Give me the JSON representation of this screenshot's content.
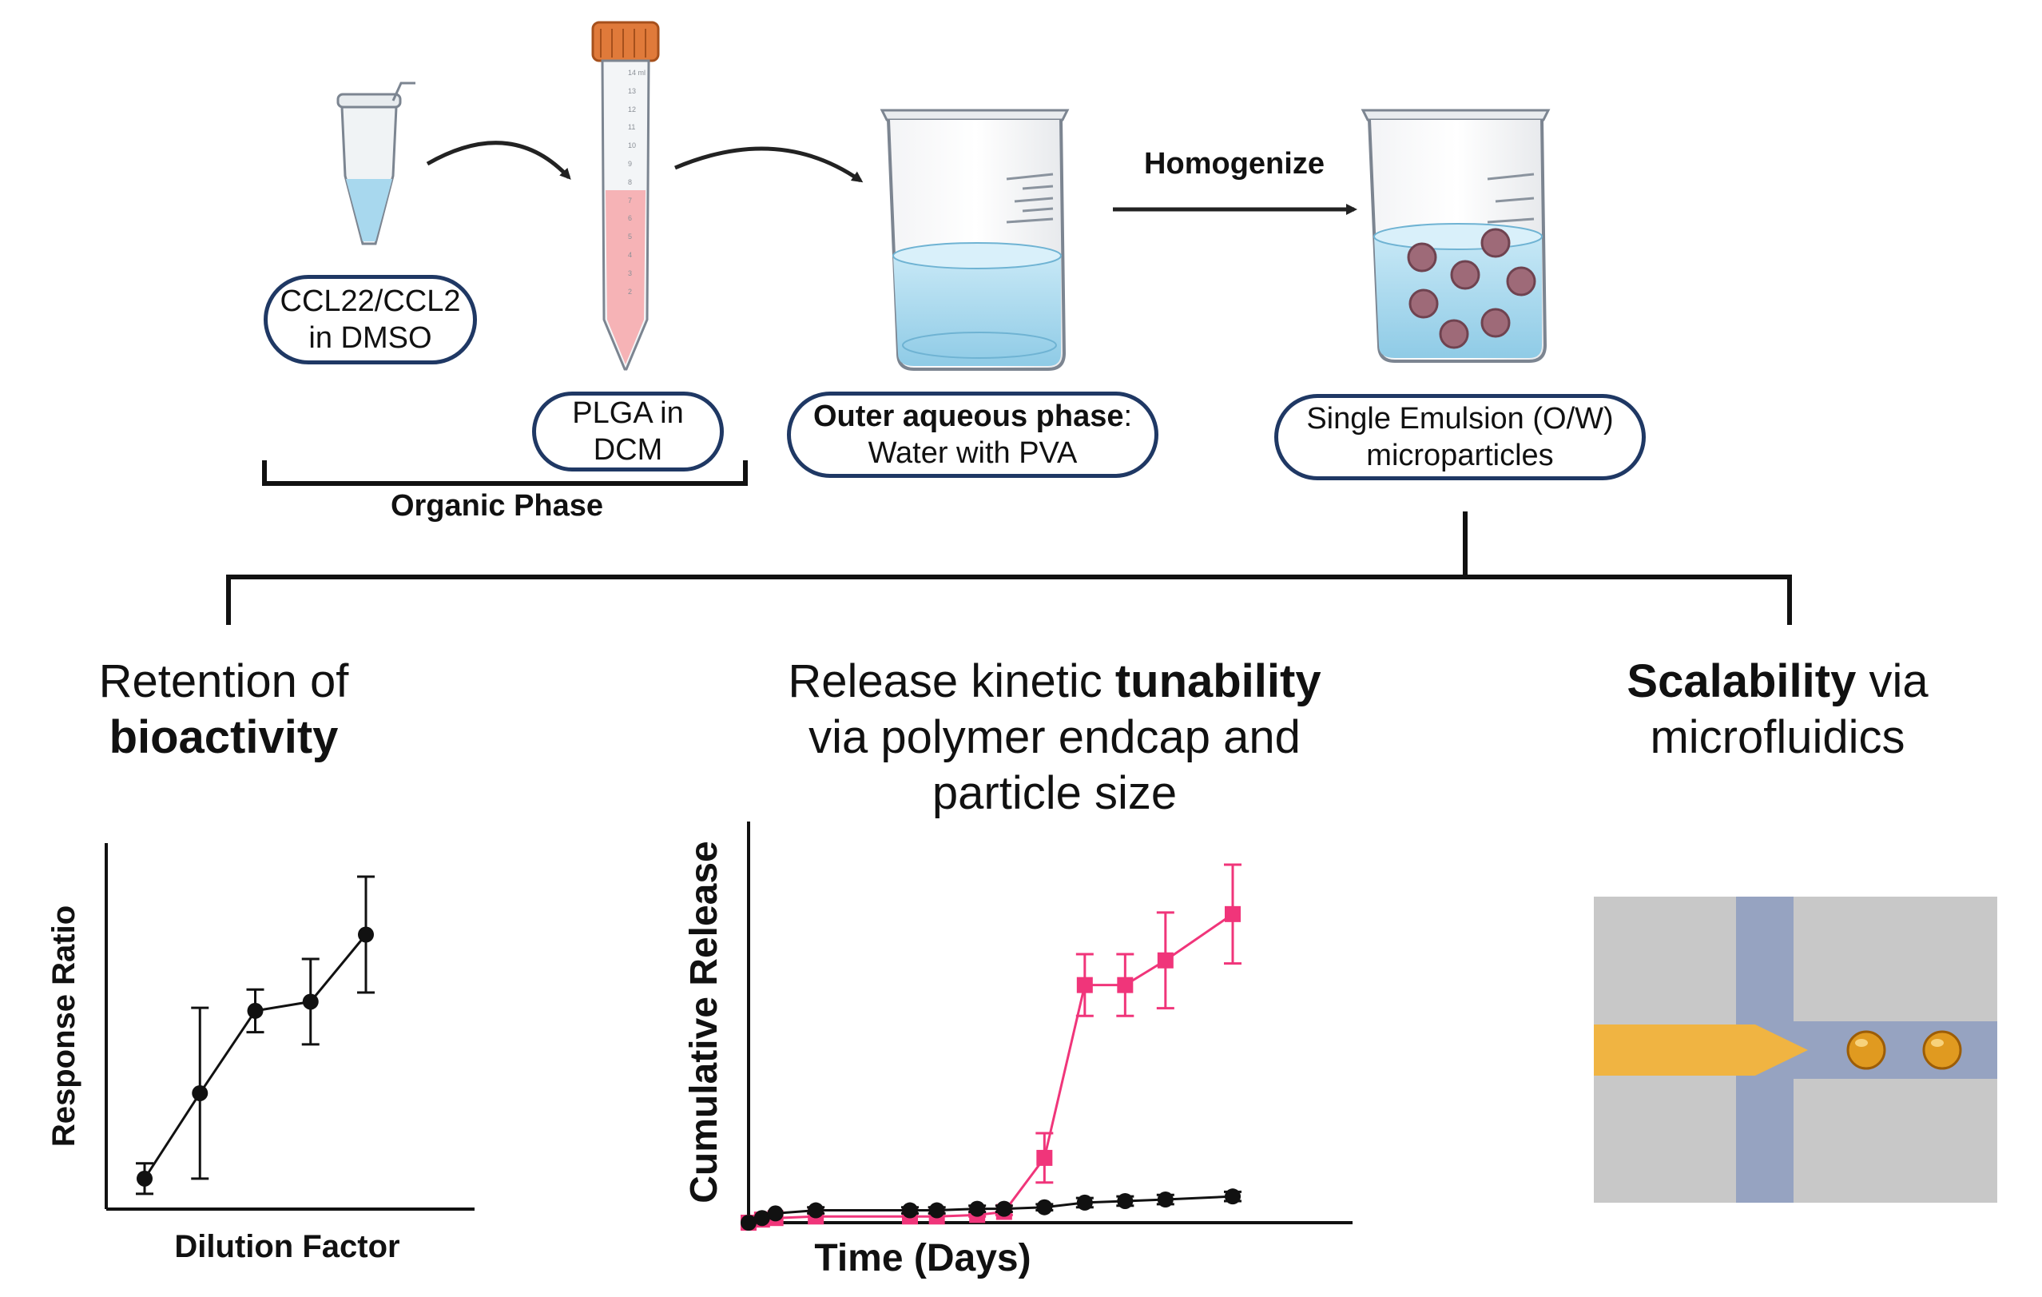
{
  "process": {
    "tube_label": [
      "CCL22/CCL2",
      "in DMSO"
    ],
    "plga_label": [
      "PLGA in",
      "DCM"
    ],
    "organic_phase": "Organic Phase",
    "outer_phase_bold": "Outer aqueous phase",
    "outer_phase_colon": ":",
    "outer_phase_line2": "Water with PVA",
    "homogenize": "Homogenize",
    "emulsion_label": [
      "Single Emulsion (O/W)",
      "microparticles"
    ],
    "tube_scale": [
      "14 ml",
      "13",
      "12",
      "11",
      "10",
      "9",
      "8",
      "7",
      "6",
      "5",
      "4",
      "3",
      "2"
    ]
  },
  "outcomes": {
    "bioactivity": {
      "line1": "Retention of",
      "bold": "bioactivity"
    },
    "release": {
      "pre": "Release kinetic ",
      "bold": "tunability",
      "line2": "via polymer endcap and",
      "line3": "particle size"
    },
    "scalability": {
      "bold": "Scalability",
      "post": " via",
      "line2": "microfluidics"
    }
  },
  "colors": {
    "outline": "#1f3864",
    "pink": "#f0357a",
    "black": "#111111",
    "water": "#a8d8ee",
    "particle": "#9e6a78",
    "tube_cap": "#e07a3a",
    "organic": "#f6b3b6",
    "chip_bg": "#c8c8c8",
    "chip_channel": "#96a3c1",
    "chip_orange": "#f0b442",
    "droplet": "#e09a20"
  },
  "chart_data": [
    {
      "type": "line",
      "xlabel": "Dilution Factor",
      "ylabel": "Response Ratio",
      "x": [
        1,
        2,
        3,
        4,
        5
      ],
      "series": [
        {
          "values": [
            0.1,
            0.38,
            0.65,
            0.68,
            0.9
          ],
          "errors": [
            0.05,
            0.28,
            0.07,
            0.14,
            0.19
          ]
        }
      ],
      "ylim": [
        0,
        1.2
      ],
      "grid": false
    },
    {
      "type": "line",
      "xlabel": "Time (Days)",
      "ylabel": "Cumulative Release",
      "x": [
        0,
        1,
        2,
        5,
        12,
        14,
        17,
        19,
        22,
        25,
        28,
        31,
        36
      ],
      "series": [
        {
          "color": "pink",
          "values": [
            0.0,
            0.02,
            0.03,
            0.04,
            0.04,
            0.04,
            0.05,
            0.07,
            0.42,
            1.54,
            1.54,
            1.7,
            2.0
          ],
          "errors": [
            0.0,
            0.0,
            0.0,
            0.0,
            0.0,
            0.0,
            0.01,
            0.02,
            0.16,
            0.2,
            0.2,
            0.31,
            0.32
          ]
        },
        {
          "color": "black",
          "values": [
            0.0,
            0.03,
            0.06,
            0.08,
            0.08,
            0.08,
            0.09,
            0.09,
            0.1,
            0.13,
            0.14,
            0.15,
            0.17
          ],
          "errors": [
            0.0,
            0.0,
            0.0,
            0.02,
            0.02,
            0.02,
            0.02,
            0.02,
            0.02,
            0.03,
            0.03,
            0.03,
            0.03
          ]
        }
      ],
      "ylim": [
        0,
        2.6
      ],
      "grid": false
    }
  ]
}
